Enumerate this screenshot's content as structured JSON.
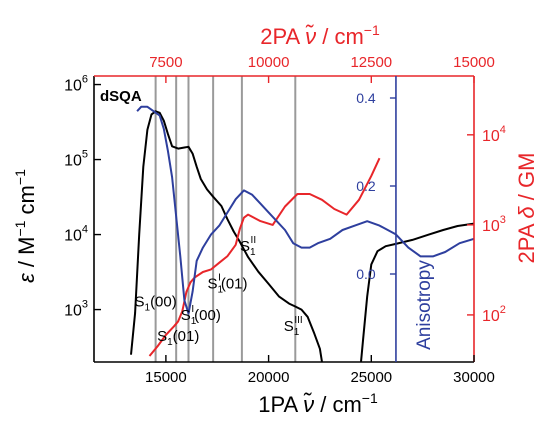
{
  "chart_data": {
    "type": "line",
    "sample_label": "dSQA",
    "colors": {
      "black": "#000000",
      "red": "#e8262a",
      "blue": "#2e3f9e",
      "marker": "#9a9a9a"
    },
    "axes": {
      "bottom": {
        "title_main": "1PA",
        "title_unit": " / cm",
        "title_exp": "−1",
        "nu": "ν̃",
        "range": [
          11500,
          30000
        ],
        "ticks": [
          15000,
          20000,
          25000,
          30000
        ],
        "tick_labels": [
          "15000",
          "20000",
          "25000",
          "30000"
        ]
      },
      "top": {
        "title_main": "2PA",
        "title_unit": " / cm",
        "title_exp": "−1",
        "nu": "ν̃",
        "range": [
          5750,
          15000
        ],
        "ticks": [
          7500,
          10000,
          12500,
          15000
        ],
        "tick_labels": [
          "7500",
          "10000",
          "12500",
          "15000"
        ]
      },
      "left": {
        "title_main": "ε",
        "title_unit": " / M",
        "title_unit2": " cm",
        "title_exp": "−1",
        "scale": "log",
        "range": [
          200,
          1300000
        ],
        "ticks": [
          1000,
          10000,
          100000,
          1000000
        ],
        "tick_bases": [
          "10",
          "10",
          "10",
          "10"
        ],
        "tick_exps": [
          "3",
          "4",
          "5",
          "6"
        ]
      },
      "inner_right": {
        "title": "Anisotropy",
        "range": [
          -0.2,
          0.45
        ],
        "ticks": [
          0.0,
          0.2,
          0.4
        ],
        "tick_labels": [
          "0.0",
          "0.2",
          "0.4"
        ],
        "position_x": 26200
      },
      "right": {
        "title_main": "2PA ",
        "title_delta": "δ",
        "title_unit": " / GM",
        "scale": "log",
        "range": [
          30,
          45000
        ],
        "ticks": [
          100,
          1000,
          10000
        ],
        "tick_bases": [
          "10",
          "10",
          "10"
        ],
        "tick_exps": [
          "2",
          "3",
          "4"
        ]
      }
    },
    "transition_lines_x": [
      14500,
      15500,
      16100,
      17300,
      18700,
      21300
    ],
    "state_labels": [
      {
        "base": "S",
        "sub": "1",
        "sup": "",
        "tail": "(00)",
        "x": 14500,
        "y": 1100
      },
      {
        "base": "S",
        "sub": "1",
        "sup": "",
        "tail": "(01)",
        "x": 15600,
        "y": 380
      },
      {
        "base": "S",
        "sub": "1",
        "sup": "I",
        "tail": "(00)",
        "x": 16700,
        "y": 730
      },
      {
        "base": "S",
        "sub": "1",
        "sup": "I",
        "tail": "(01)",
        "x": 18000,
        "y": 1900
      },
      {
        "base": "S",
        "sub": "1",
        "sup": "II",
        "tail": "",
        "x": 19000,
        "y": 6000
      },
      {
        "base": "S",
        "sub": "1",
        "sup": "III",
        "tail": "",
        "x": 21200,
        "y": 520
      }
    ],
    "series": [
      {
        "key": "epsilon",
        "color": "black",
        "axis": "left",
        "segments": [
          [
            [
              13300,
              250
            ],
            [
              13500,
              900
            ],
            [
              13700,
              10000
            ],
            [
              13900,
              80000
            ],
            [
              14100,
              250000
            ],
            [
              14300,
              400000
            ],
            [
              14500,
              440000
            ],
            [
              14700,
              420000
            ],
            [
              14900,
              330000
            ],
            [
              15100,
              220000
            ],
            [
              15300,
              150000
            ],
            [
              15600,
              140000
            ],
            [
              15900,
              145000
            ],
            [
              16100,
              148000
            ],
            [
              16300,
              120000
            ],
            [
              16500,
              80000
            ],
            [
              16700,
              55000
            ],
            [
              17000,
              40000
            ],
            [
              17300,
              32000
            ],
            [
              17700,
              24000
            ],
            [
              18000,
              16000
            ],
            [
              18300,
              11000
            ],
            [
              18600,
              8000
            ],
            [
              19000,
              5000
            ],
            [
              19500,
              3200
            ],
            [
              20000,
              2200
            ],
            [
              20500,
              1500
            ],
            [
              21000,
              1200
            ],
            [
              21300,
              1100
            ],
            [
              21600,
              1000
            ],
            [
              21900,
              800
            ],
            [
              22200,
              500
            ],
            [
              22500,
              300
            ],
            [
              22600,
              200
            ]
          ],
          [
            [
              24500,
              200
            ],
            [
              24600,
              400
            ],
            [
              24800,
              1500
            ],
            [
              25000,
              4000
            ],
            [
              25300,
              6000
            ],
            [
              25700,
              7000
            ],
            [
              26200,
              7500
            ],
            [
              27000,
              8500
            ],
            [
              27800,
              10000
            ],
            [
              28500,
              11500
            ],
            [
              29200,
              13000
            ],
            [
              30000,
              14000
            ]
          ]
        ]
      },
      {
        "key": "two_pa",
        "color": "red",
        "axis": "right",
        "points": [
          [
            7100,
            35
          ],
          [
            7300,
            45
          ],
          [
            7500,
            60
          ],
          [
            7700,
            75
          ],
          [
            7800,
            85
          ],
          [
            7900,
            110
          ],
          [
            8000,
            180
          ],
          [
            8100,
            230
          ],
          [
            8200,
            260
          ],
          [
            8400,
            300
          ],
          [
            8600,
            320
          ],
          [
            8800,
            380
          ],
          [
            9000,
            450
          ],
          [
            9200,
            600
          ],
          [
            9300,
            900
          ],
          [
            9400,
            1200
          ],
          [
            9500,
            1300
          ],
          [
            9800,
            1100
          ],
          [
            10100,
            1000
          ],
          [
            10400,
            1600
          ],
          [
            10700,
            2200
          ],
          [
            11000,
            2200
          ],
          [
            11300,
            1900
          ],
          [
            11600,
            1500
          ],
          [
            11900,
            1300
          ],
          [
            12200,
            1900
          ],
          [
            12500,
            3500
          ],
          [
            12700,
            5500
          ]
        ]
      },
      {
        "key": "anisotropy",
        "color": "blue",
        "axis": "inner_right",
        "segments": [
          [
            [
              13600,
              0.37
            ],
            [
              13800,
              0.38
            ],
            [
              14100,
              0.38
            ],
            [
              14400,
              0.37
            ],
            [
              14700,
              0.36
            ],
            [
              14900,
              0.33
            ],
            [
              15100,
              0.28
            ],
            [
              15300,
              0.22
            ],
            [
              15500,
              0.13
            ],
            [
              15700,
              0.04
            ],
            [
              15900,
              -0.06
            ],
            [
              16100,
              -0.09
            ],
            [
              16300,
              -0.04
            ],
            [
              16500,
              0.03
            ],
            [
              16800,
              0.06
            ],
            [
              17200,
              0.09
            ],
            [
              17600,
              0.11
            ],
            [
              18000,
              0.14
            ],
            [
              18400,
              0.17
            ],
            [
              18800,
              0.19
            ],
            [
              19200,
              0.18
            ],
            [
              19600,
              0.16
            ],
            [
              20000,
              0.14
            ],
            [
              20400,
              0.12
            ],
            [
              20800,
              0.1
            ],
            [
              21200,
              0.07
            ],
            [
              21600,
              0.06
            ],
            [
              22000,
              0.06
            ],
            [
              22400,
              0.07
            ],
            [
              23000,
              0.08
            ],
            [
              23600,
              0.1
            ],
            [
              24200,
              0.11
            ],
            [
              24800,
              0.12
            ],
            [
              25400,
              0.11
            ],
            [
              26200,
              0.09
            ]
          ],
          [
            [
              26200,
              0.09
            ],
            [
              26800,
              0.06
            ],
            [
              27400,
              0.04
            ],
            [
              28000,
              0.04
            ],
            [
              28600,
              0.05
            ],
            [
              29300,
              0.07
            ],
            [
              30000,
              0.08
            ]
          ]
        ]
      }
    ]
  }
}
